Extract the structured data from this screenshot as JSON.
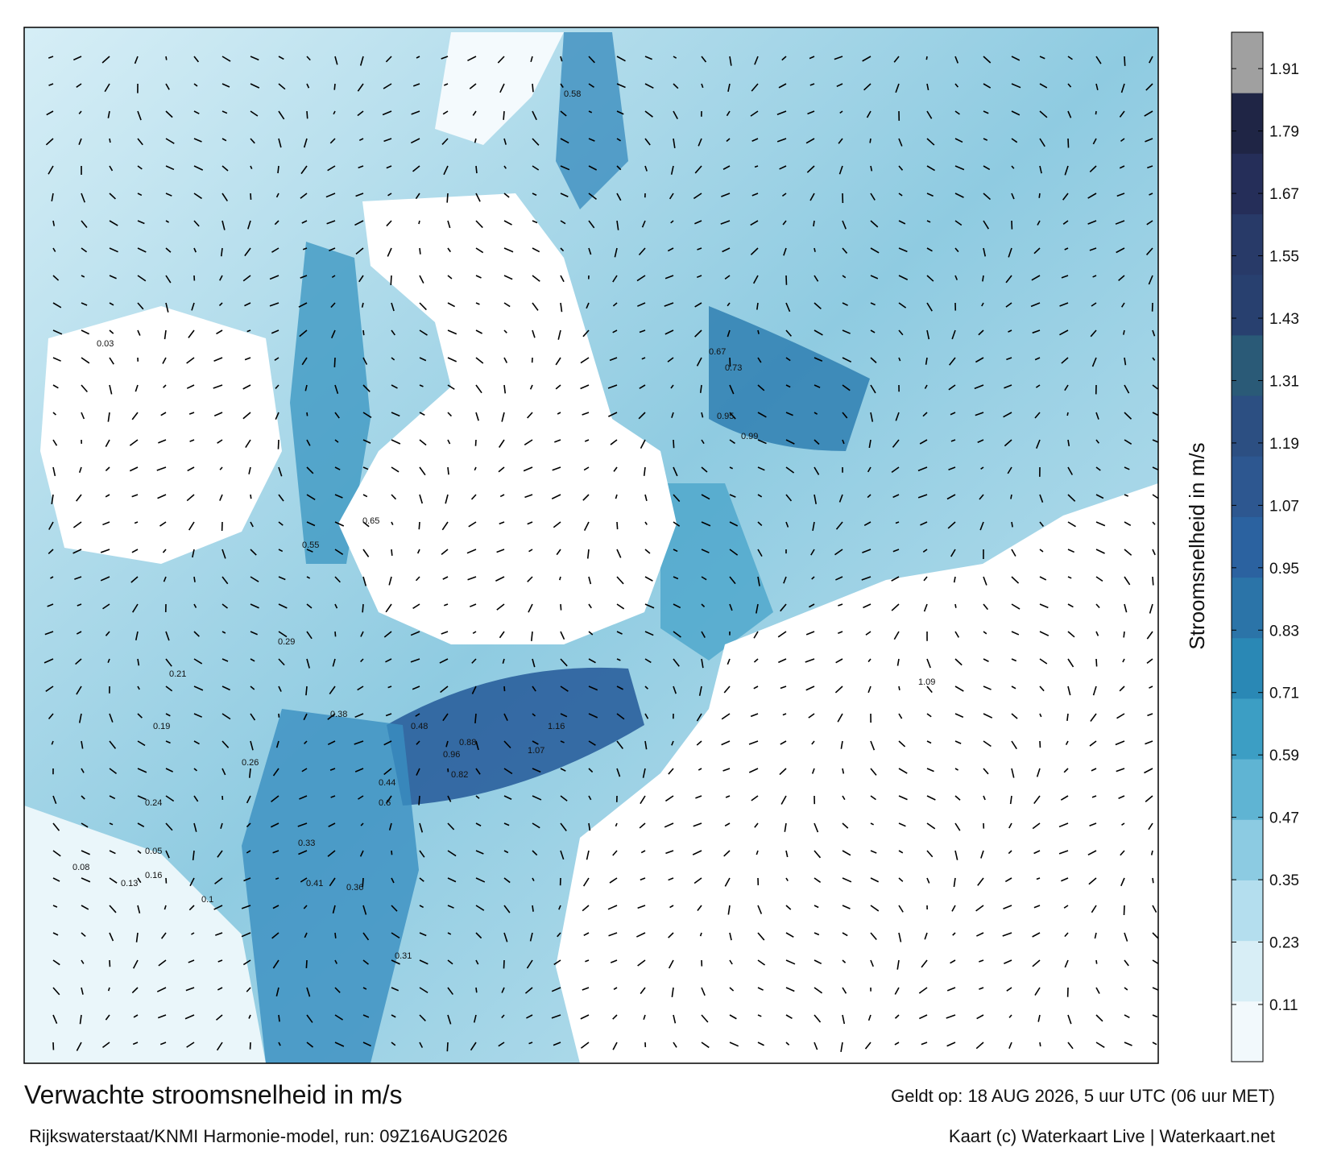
{
  "header": {
    "title": "Verwachte stroomsnelheid in m/s",
    "model": "Rijkswaterstaat/KNMI Harmonie-model, run: 09Z16AUG2026",
    "valid": "Geldt op: 18 AUG 2026, 5 uur UTC (06 uur MET)",
    "credit": "Kaart (c) Waterkaart Live | Waterkaart.net"
  },
  "colorbar": {
    "label": "Stroomsnelheid in m/s",
    "lim": [
      0,
      1.98
    ],
    "ticks": [
      0.11,
      0.23,
      0.35,
      0.47,
      0.59,
      0.71,
      0.83,
      0.95,
      1.07,
      1.19,
      1.31,
      1.43,
      1.55,
      1.67,
      1.79,
      1.91
    ],
    "colors": [
      "#f2f9fc",
      "#d8eef6",
      "#b4deee",
      "#8ccbe2",
      "#5fb4d3",
      "#3c9ec4",
      "#2a88b5",
      "#2b74a8",
      "#2b62a0",
      "#2d5790",
      "#2c4f82",
      "#2a5a77",
      "#28406f",
      "#283a68",
      "#252e59",
      "#1f2545",
      "#a0a0a0"
    ]
  },
  "current_labels": [
    "0.58",
    "0.67",
    "0.73",
    "0.95",
    "0.99",
    "1.09",
    "1.16",
    "1.07",
    "0.96",
    "0.88",
    "0.82",
    "0.65",
    "0.6",
    "0.55",
    "0.48",
    "0.44",
    "0.41",
    "0.38",
    "0.36",
    "0.33",
    "0.31",
    "0.29",
    "0.26",
    "0.24",
    "0.21",
    "0.19",
    "0.16",
    "0.13",
    "0.1",
    "0.08",
    "0.05",
    "0.03"
  ]
}
